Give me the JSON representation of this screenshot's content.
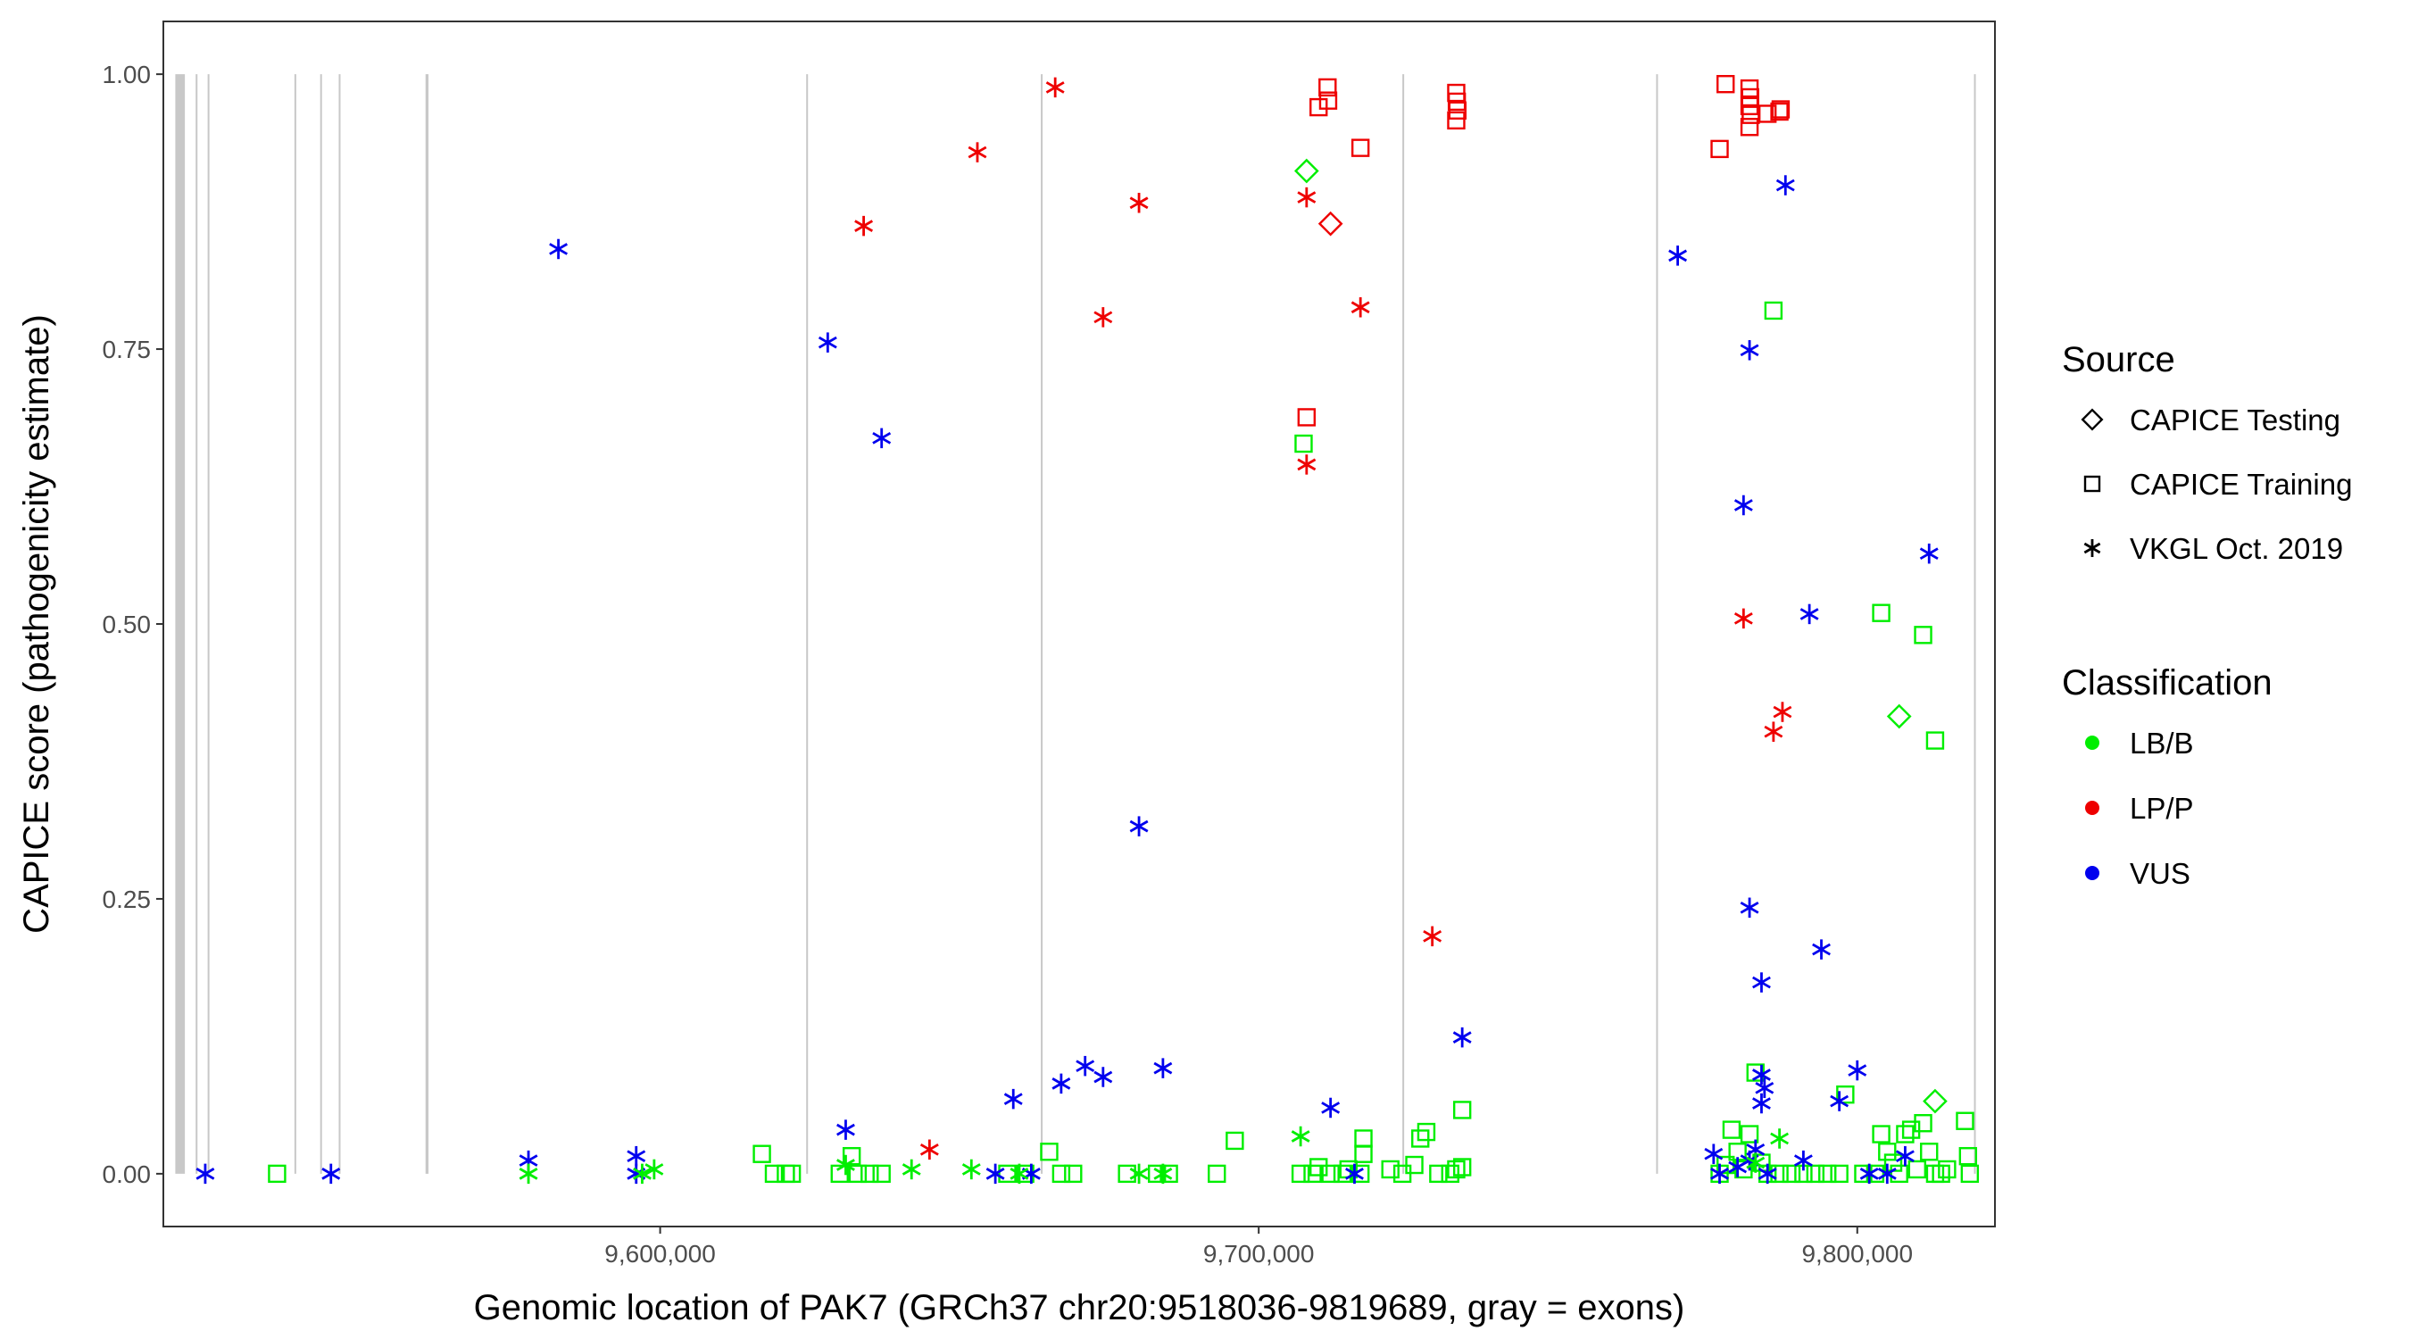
{
  "chart_data": {
    "type": "scatter",
    "xlabel": "Genomic location of PAK7 (GRCh37 chr20:9518036-9819689, gray = exons)",
    "ylabel": "CAPICE score (pathogenicity estimate)",
    "xlim": [
      9517000,
      9823000
    ],
    "ylim": [
      -0.048,
      1.048
    ],
    "x_ticks": [
      9600000,
      9700000,
      9800000
    ],
    "x_tick_labels": [
      "9,600,000",
      "9,700,000",
      "9,800,000"
    ],
    "y_ticks": [
      0,
      0.25,
      0.5,
      0.75,
      1
    ],
    "y_tick_labels": [
      "0.00",
      "0.25",
      "0.50",
      "0.75",
      "1.00"
    ],
    "grid": false,
    "exons": [
      {
        "start": 9519000,
        "end": 9520600
      },
      {
        "start": 9522400,
        "end": 9522700
      },
      {
        "start": 9524400,
        "end": 9524700
      },
      {
        "start": 9538900,
        "end": 9539200
      },
      {
        "start": 9543200,
        "end": 9543500
      },
      {
        "start": 9546300,
        "end": 9546600
      },
      {
        "start": 9560800,
        "end": 9561300
      },
      {
        "start": 9624400,
        "end": 9624700
      },
      {
        "start": 9663600,
        "end": 9663900
      },
      {
        "start": 9724000,
        "end": 9724300
      },
      {
        "start": 9766400,
        "end": 9766700
      },
      {
        "start": 9819500,
        "end": 9819800
      }
    ],
    "legend": {
      "source_title": "Source",
      "source_entries": [
        {
          "label": "CAPICE Testing",
          "shape": "diamond"
        },
        {
          "label": "CAPICE Training",
          "shape": "square"
        },
        {
          "label": "VKGL Oct. 2019",
          "shape": "asterisk"
        }
      ],
      "class_title": "Classification",
      "class_entries": [
        {
          "label": "LB/B",
          "color": "#00ee00"
        },
        {
          "label": "LP/P",
          "color": "#ee0000"
        },
        {
          "label": "VUS",
          "color": "#0000ee"
        }
      ]
    },
    "series": [
      {
        "source": "CAPICE Training",
        "classification": "LP/P",
        "points": [
          [
            9711500,
            0.988
          ],
          [
            9711600,
            0.976
          ],
          [
            9710000,
            0.97
          ],
          [
            9717000,
            0.933
          ],
          [
            9733000,
            0.983
          ],
          [
            9733100,
            0.975
          ],
          [
            9733200,
            0.967
          ],
          [
            9733000,
            0.958
          ],
          [
            9708000,
            0.688
          ],
          [
            9778000,
            0.991
          ],
          [
            9782000,
            0.987
          ],
          [
            9782100,
            0.979
          ],
          [
            9782000,
            0.971
          ],
          [
            9782200,
            0.963
          ],
          [
            9785000,
            0.964
          ],
          [
            9787000,
            0.966
          ],
          [
            9787200,
            0.968
          ],
          [
            9782000,
            0.952
          ],
          [
            9777000,
            0.932
          ]
        ]
      },
      {
        "source": "CAPICE Training",
        "classification": "LB/B",
        "points": [
          [
            9536000,
            0.0
          ],
          [
            9617000,
            0.018
          ],
          [
            9619000,
            0.0
          ],
          [
            9621000,
            0.0
          ],
          [
            9622000,
            0.0
          ],
          [
            9630000,
            0.0
          ],
          [
            9632000,
            0.016
          ],
          [
            9633000,
            0.0
          ],
          [
            9635000,
            0.0
          ],
          [
            9637000,
            0.0
          ],
          [
            9658000,
            0.0
          ],
          [
            9661000,
            0.0
          ],
          [
            9665000,
            0.02
          ],
          [
            9667000,
            0.0
          ],
          [
            9669000,
            0.0
          ],
          [
            9678000,
            0.0
          ],
          [
            9683000,
            0.0
          ],
          [
            9685000,
            0.0
          ],
          [
            9693000,
            0.0
          ],
          [
            9696000,
            0.03
          ],
          [
            9707000,
            0.0
          ],
          [
            9709000,
            0.0
          ],
          [
            9710000,
            0.006
          ],
          [
            9712000,
            0.0
          ],
          [
            9714000,
            0.0
          ],
          [
            9715000,
            0.004
          ],
          [
            9717000,
            0.0
          ],
          [
            9717500,
            0.032
          ],
          [
            9717500,
            0.018
          ],
          [
            9722000,
            0.004
          ],
          [
            9724000,
            0.0
          ],
          [
            9726000,
            0.008
          ],
          [
            9727000,
            0.032
          ],
          [
            9728000,
            0.038
          ],
          [
            9730000,
            0.0
          ],
          [
            9732000,
            0.0
          ],
          [
            9733000,
            0.004
          ],
          [
            9734000,
            0.006
          ],
          [
            9734000,
            0.058
          ],
          [
            9707500,
            0.664
          ],
          [
            9786000,
            0.785
          ],
          [
            9777000,
            0.0
          ],
          [
            9778000,
            0.008
          ],
          [
            9779000,
            0.04
          ],
          [
            9780000,
            0.02
          ],
          [
            9781000,
            0.004
          ],
          [
            9782000,
            0.036
          ],
          [
            9783000,
            0.092
          ],
          [
            9784000,
            0.01
          ],
          [
            9785000,
            0.0
          ],
          [
            9787000,
            0.0
          ],
          [
            9789000,
            0.0
          ],
          [
            9791000,
            0.0
          ],
          [
            9793000,
            0.0
          ],
          [
            9795000,
            0.0
          ],
          [
            9797000,
            0.0
          ],
          [
            9798000,
            0.072
          ],
          [
            9801000,
            0.0
          ],
          [
            9803000,
            0.0
          ],
          [
            9804000,
            0.036
          ],
          [
            9805000,
            0.02
          ],
          [
            9806000,
            0.01
          ],
          [
            9807000,
            0.0
          ],
          [
            9808000,
            0.036
          ],
          [
            9809000,
            0.04
          ],
          [
            9810000,
            0.004
          ],
          [
            9811000,
            0.046
          ],
          [
            9812000,
            0.02
          ],
          [
            9813000,
            0.0
          ],
          [
            9814000,
            0.0
          ],
          [
            9815000,
            0.004
          ],
          [
            9818000,
            0.048
          ],
          [
            9818500,
            0.016
          ],
          [
            9818800,
            0.0
          ],
          [
            9804000,
            0.51
          ],
          [
            9811000,
            0.49
          ],
          [
            9813000,
            0.394
          ]
        ]
      },
      {
        "source": "CAPICE Testing",
        "classification": "LB/B",
        "points": [
          [
            9708000,
            0.912
          ],
          [
            9813000,
            0.066
          ]
        ]
      },
      {
        "source": "CAPICE Testing",
        "classification": "LP/P",
        "points": [
          [
            9712000,
            0.864
          ]
        ]
      },
      {
        "source": "CAPICE Testing",
        "classification": "LB/B",
        "points": [
          [
            9807000,
            0.416
          ]
        ]
      },
      {
        "source": "VKGL Oct. 2019",
        "classification": "LP/P",
        "points": [
          [
            9666000,
            0.988
          ],
          [
            9653000,
            0.929
          ],
          [
            9634000,
            0.862
          ],
          [
            9680000,
            0.883
          ],
          [
            9674000,
            0.779
          ],
          [
            9708000,
            0.888
          ],
          [
            9717000,
            0.788
          ],
          [
            9708000,
            0.645
          ],
          [
            9729000,
            0.216
          ],
          [
            9645000,
            0.022
          ],
          [
            9781000,
            0.505
          ],
          [
            9787500,
            0.42
          ],
          [
            9786000,
            0.402
          ]
        ]
      },
      {
        "source": "VKGL Oct. 2019",
        "classification": "VUS",
        "points": [
          [
            9524000,
            0.0
          ],
          [
            9545000,
            0.0
          ],
          [
            9583000,
            0.841
          ],
          [
            9578000,
            0.012
          ],
          [
            9596000,
            0.016
          ],
          [
            9596000,
            0.0
          ],
          [
            9628000,
            0.756
          ],
          [
            9637000,
            0.669
          ],
          [
            9631000,
            0.04
          ],
          [
            9659000,
            0.068
          ],
          [
            9656000,
            0.0
          ],
          [
            9662000,
            0.0
          ],
          [
            9667000,
            0.082
          ],
          [
            9671000,
            0.098
          ],
          [
            9674000,
            0.088
          ],
          [
            9684000,
            0.096
          ],
          [
            9680000,
            0.316
          ],
          [
            9712000,
            0.06
          ],
          [
            9716000,
            0.0
          ],
          [
            9734000,
            0.124
          ],
          [
            9770000,
            0.835
          ],
          [
            9788000,
            0.899
          ],
          [
            9782000,
            0.749
          ],
          [
            9781000,
            0.608
          ],
          [
            9792000,
            0.509
          ],
          [
            9812000,
            0.564
          ],
          [
            9782000,
            0.242
          ],
          [
            9784000,
            0.174
          ],
          [
            9794000,
            0.204
          ],
          [
            9800000,
            0.094
          ],
          [
            9797000,
            0.066
          ],
          [
            9784000,
            0.09
          ],
          [
            9784500,
            0.078
          ],
          [
            9784000,
            0.064
          ],
          [
            9776000,
            0.018
          ],
          [
            9777000,
            0.0
          ],
          [
            9780000,
            0.006
          ],
          [
            9782000,
            0.012
          ],
          [
            9783000,
            0.022
          ],
          [
            9785000,
            0.0
          ],
          [
            9791000,
            0.012
          ],
          [
            9802000,
            0.0
          ],
          [
            9805000,
            0.0
          ],
          [
            9808000,
            0.016
          ]
        ]
      },
      {
        "source": "VKGL Oct. 2019",
        "classification": "LB/B",
        "points": [
          [
            9578000,
            0.0
          ],
          [
            9597000,
            0.0
          ],
          [
            9599000,
            0.004
          ],
          [
            9631000,
            0.008
          ],
          [
            9642000,
            0.004
          ],
          [
            9652000,
            0.004
          ],
          [
            9660000,
            0.0
          ],
          [
            9680000,
            0.0
          ],
          [
            9684000,
            0.0
          ],
          [
            9707000,
            0.034
          ],
          [
            9783000,
            0.01
          ],
          [
            9787000,
            0.032
          ]
        ]
      }
    ]
  }
}
